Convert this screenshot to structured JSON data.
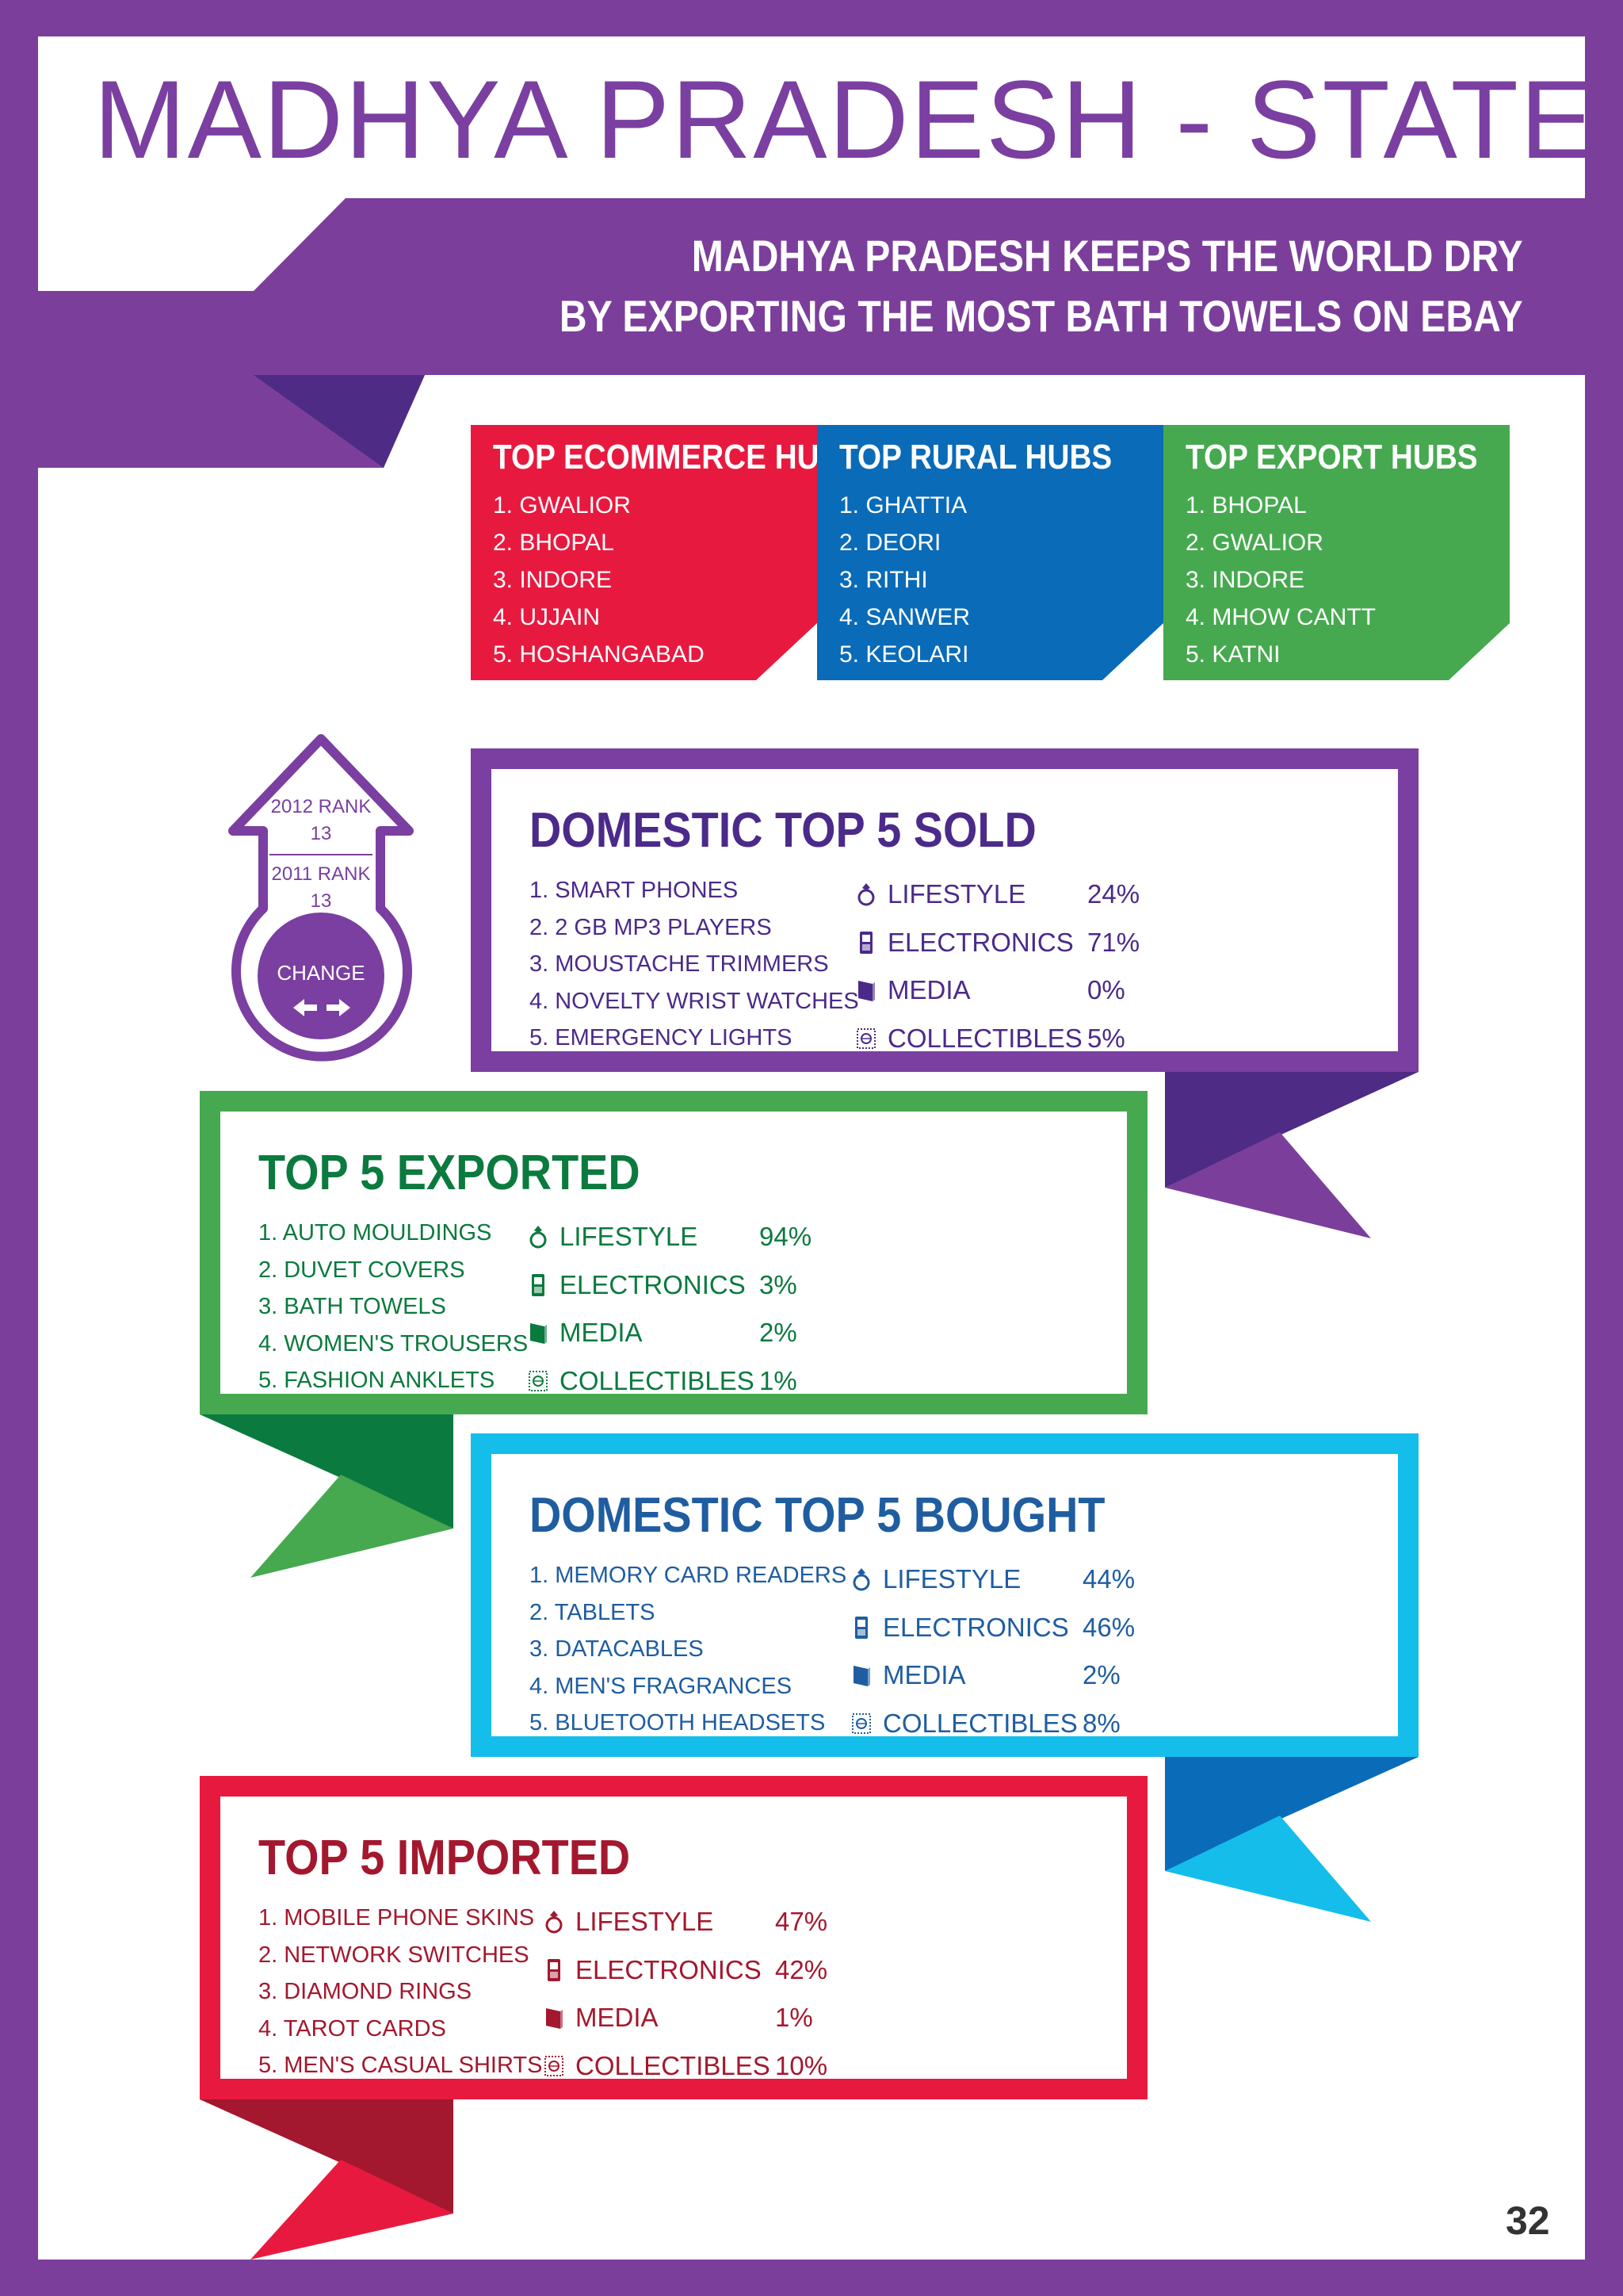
{
  "title": "MADHYA PRADESH - STATE",
  "subtitle_lines": [
    "MADHYA PRADESH KEEPS THE WORLD DRY",
    "BY EXPORTING THE MOST BATH TOWELS ON EBAY"
  ],
  "hubs": [
    {
      "title": "TOP ECOMMERCE HUBS",
      "color": "#E8193F",
      "items": [
        "1. GWALIOR",
        "2. BHOPAL",
        "3. INDORE",
        "4. UJJAIN",
        "5. HOSHANGABAD"
      ]
    },
    {
      "title": "TOP RURAL HUBS",
      "color": "#0A6BB8",
      "items": [
        "1. GHATTIA",
        "2. DEORI",
        "3. RITHI",
        "4. SANWER",
        "5. KEOLARI"
      ]
    },
    {
      "title": "TOP EXPORT HUBS",
      "color": "#46A94F",
      "items": [
        "1. BHOPAL",
        "2. GWALIOR",
        "3. INDORE",
        "4. MHOW CANTT",
        "5. KATNI"
      ]
    }
  ],
  "rank": {
    "rank_2012_label": "2012 RANK",
    "rank_2012_value": "13",
    "rank_2011_label": "2011 RANK",
    "rank_2011_value": "13",
    "change_label": "CHANGE"
  },
  "sections": {
    "sold": {
      "title": "DOMESTIC TOP 5 SOLD",
      "color": "#7A3FA0",
      "text_color": "#4B2A8A",
      "items": [
        "1. SMART PHONES",
        "2. 2 GB MP3 PLAYERS",
        "3. MOUSTACHE TRIMMERS",
        "4. NOVELTY WRIST WATCHES",
        "5. EMERGENCY LIGHTS"
      ],
      "categories": [
        {
          "icon": "ring-icon",
          "name": "LIFESTYLE",
          "value": "24%"
        },
        {
          "icon": "phone-icon",
          "name": "ELECTRONICS",
          "value": "71%"
        },
        {
          "icon": "book-icon",
          "name": "MEDIA",
          "value": "0%"
        },
        {
          "icon": "stamp-icon",
          "name": "COLLECTIBLES",
          "value": "5%"
        }
      ]
    },
    "exported": {
      "title": "TOP 5 EXPORTED",
      "color": "#46A94F",
      "text_color": "#0B7A3E",
      "items": [
        "1. AUTO MOULDINGS",
        "2. DUVET COVERS",
        "3. BATH TOWELS",
        "4. WOMEN'S TROUSERS",
        "5. FASHION ANKLETS"
      ],
      "categories": [
        {
          "icon": "ring-icon",
          "name": "LIFESTYLE",
          "value": "94%"
        },
        {
          "icon": "phone-icon",
          "name": "ELECTRONICS",
          "value": "3%"
        },
        {
          "icon": "book-icon",
          "name": "MEDIA",
          "value": "2%"
        },
        {
          "icon": "stamp-icon",
          "name": "COLLECTIBLES",
          "value": "1%"
        }
      ]
    },
    "bought": {
      "title": "DOMESTIC TOP 5 BOUGHT",
      "color": "#15BDEB",
      "text_color": "#1F5DA0",
      "items": [
        "1. MEMORY CARD READERS",
        "2. TABLETS",
        "3. DATACABLES",
        "4. MEN'S FRAGRANCES",
        "5. BLUETOOTH HEADSETS"
      ],
      "categories": [
        {
          "icon": "ring-icon",
          "name": "LIFESTYLE",
          "value": "44%"
        },
        {
          "icon": "phone-icon",
          "name": "ELECTRONICS",
          "value": "46%"
        },
        {
          "icon": "book-icon",
          "name": "MEDIA",
          "value": "2%"
        },
        {
          "icon": "stamp-icon",
          "name": "COLLECTIBLES",
          "value": "8%"
        }
      ]
    },
    "imported": {
      "title": "TOP 5 IMPORTED",
      "color": "#E8193F",
      "text_color": "#A3182E",
      "items": [
        "1. MOBILE PHONE SKINS",
        "2. NETWORK SWITCHES",
        "3. DIAMOND RINGS",
        "4. TAROT CARDS",
        "5. MEN'S CASUAL SHIRTS"
      ],
      "categories": [
        {
          "icon": "ring-icon",
          "name": "LIFESTYLE",
          "value": "47%"
        },
        {
          "icon": "phone-icon",
          "name": "ELECTRONICS",
          "value": "42%"
        },
        {
          "icon": "book-icon",
          "name": "MEDIA",
          "value": "1%"
        },
        {
          "icon": "stamp-icon",
          "name": "COLLECTIBLES",
          "value": "10%"
        }
      ]
    }
  },
  "page_number": "32"
}
